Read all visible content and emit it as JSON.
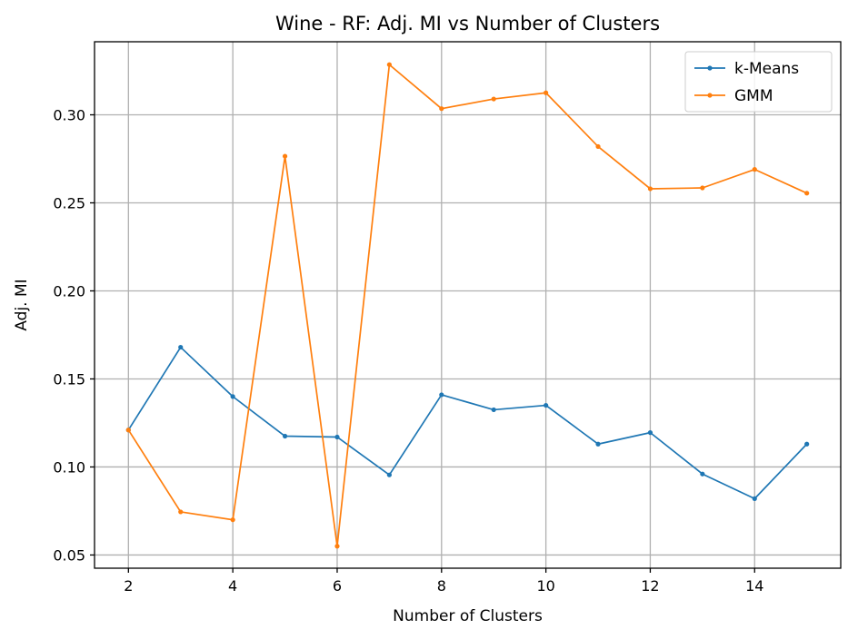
{
  "chart_data": {
    "type": "line",
    "title": "Wine - RF: Adj. MI vs Number of Clusters",
    "xlabel": "Number of Clusters",
    "ylabel": "Adj. MI",
    "xlim": [
      1.35,
      15.65
    ],
    "ylim": [
      0.0425,
      0.3415
    ],
    "x_ticks": [
      2,
      4,
      6,
      8,
      10,
      12,
      14
    ],
    "y_ticks": [
      0.05,
      0.1,
      0.15,
      0.2,
      0.25,
      0.3
    ],
    "y_tick_labels": [
      "0.05",
      "0.10",
      "0.15",
      "0.20",
      "0.25",
      "0.30"
    ],
    "grid": true,
    "legend_position": "top-right",
    "x": [
      2,
      3,
      4,
      5,
      6,
      7,
      8,
      9,
      10,
      11,
      12,
      13,
      14,
      15
    ],
    "series": [
      {
        "name": "k-Means",
        "color": "#1f77b4",
        "values": [
          0.121,
          0.168,
          0.14,
          0.1175,
          0.117,
          0.0955,
          0.141,
          0.1325,
          0.135,
          0.113,
          0.1195,
          0.096,
          0.082,
          0.113
        ]
      },
      {
        "name": "GMM",
        "color": "#ff7f0e",
        "values": [
          0.121,
          0.0745,
          0.07,
          0.2765,
          0.055,
          0.3285,
          0.3035,
          0.309,
          0.3125,
          0.282,
          0.258,
          0.2585,
          0.269,
          0.2555
        ]
      }
    ]
  }
}
